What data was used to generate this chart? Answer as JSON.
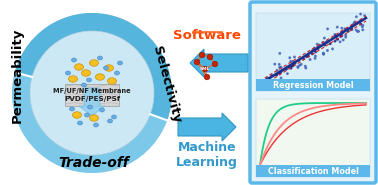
{
  "bg_color": "#ffffff",
  "labels": {
    "permeability": "Permeability",
    "selectivity": "Selectivity",
    "tradeoff": "Trade-off",
    "machine_learning": "Machine\nLearning",
    "software": "Software",
    "membrane_text1": "PVDF/PES/PSf",
    "membrane_text2": "MF/UF/NF Membrane",
    "regression": "Regression Model",
    "classification": "Classification Model"
  },
  "arrow_color": "#3aabdc",
  "box_border_color": "#5bbde8",
  "ring_colors": {
    "left": "#8ecfea",
    "right": "#5badd4",
    "bottom": "#2b7db5"
  },
  "inner_color": "#cce6f4",
  "membrane_color": "#d8d8d8",
  "particle_yellow": "#f5c518",
  "particle_blue": "#6aaed6",
  "software_color": "#ff4400"
}
